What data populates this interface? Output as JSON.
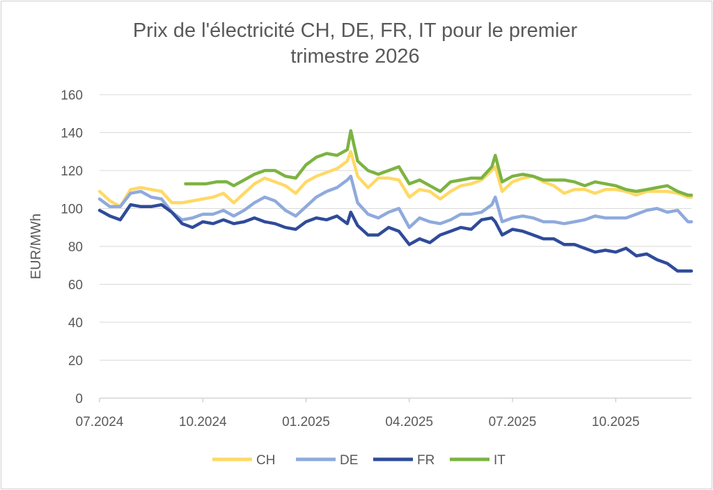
{
  "chart_data": {
    "type": "line",
    "title": "Prix de l'électricité CH, DE, FR, IT pour le premier\ntrimestre 2026",
    "xlabel": "",
    "ylabel": "EUR/MWh",
    "ylim": [
      0,
      160
    ],
    "yticks": [
      0,
      20,
      40,
      60,
      80,
      100,
      120,
      140,
      160
    ],
    "xlim": [
      0,
      17.2
    ],
    "x_unit": "months since 07.2024",
    "xticks": [
      {
        "pos": 0,
        "label": "07.2024"
      },
      {
        "pos": 3,
        "label": "10.2024"
      },
      {
        "pos": 6,
        "label": "01.2025"
      },
      {
        "pos": 9,
        "label": "04.2025"
      },
      {
        "pos": 12,
        "label": "07.2025"
      },
      {
        "pos": 15,
        "label": "10.2025"
      }
    ],
    "grid": true,
    "legend": "bottom",
    "series": [
      {
        "name": "CH",
        "color": "#FFD966",
        "x": [
          0,
          0.3,
          0.6,
          0.9,
          1.2,
          1.5,
          1.8,
          2.1,
          2.4,
          2.7,
          3.0,
          3.3,
          3.6,
          3.9,
          4.2,
          4.5,
          4.8,
          5.1,
          5.4,
          5.7,
          6.0,
          6.3,
          6.6,
          6.9,
          7.2,
          7.3,
          7.5,
          7.8,
          8.1,
          8.4,
          8.7,
          9.0,
          9.3,
          9.6,
          9.9,
          10.2,
          10.5,
          10.8,
          11.1,
          11.4,
          11.5,
          11.7,
          12.0,
          12.3,
          12.6,
          12.9,
          13.2,
          13.5,
          13.8,
          14.1,
          14.4,
          14.7,
          15.0,
          15.3,
          15.6,
          15.9,
          16.2,
          16.5,
          16.8,
          17.1,
          17.2
        ],
        "values": [
          109,
          104,
          101,
          110,
          111,
          110,
          109,
          103,
          103,
          104,
          105,
          106,
          108,
          103,
          108,
          113,
          116,
          114,
          112,
          108,
          114,
          117,
          119,
          121,
          125,
          130,
          117,
          111,
          116,
          116,
          115,
          106,
          110,
          109,
          105,
          109,
          112,
          113,
          115,
          120,
          122,
          109,
          114,
          116,
          117,
          114,
          112,
          108,
          110,
          110,
          108,
          110,
          110,
          109,
          107,
          109,
          109,
          109,
          108,
          106,
          106
        ]
      },
      {
        "name": "DE",
        "color": "#8FAADC",
        "x": [
          0,
          0.3,
          0.6,
          0.9,
          1.2,
          1.5,
          1.8,
          2.1,
          2.4,
          2.7,
          3.0,
          3.3,
          3.6,
          3.9,
          4.2,
          4.5,
          4.8,
          5.1,
          5.4,
          5.7,
          6.0,
          6.3,
          6.6,
          6.9,
          7.2,
          7.3,
          7.5,
          7.8,
          8.1,
          8.4,
          8.7,
          9.0,
          9.3,
          9.6,
          9.9,
          10.2,
          10.5,
          10.8,
          11.1,
          11.4,
          11.5,
          11.7,
          12.0,
          12.3,
          12.6,
          12.9,
          13.2,
          13.5,
          13.8,
          14.1,
          14.4,
          14.7,
          15.0,
          15.3,
          15.6,
          15.9,
          16.2,
          16.5,
          16.8,
          17.1,
          17.2
        ],
        "values": [
          105,
          101,
          101,
          108,
          109,
          106,
          105,
          98,
          94,
          95,
          97,
          97,
          99,
          96,
          99,
          103,
          106,
          104,
          99,
          96,
          101,
          106,
          109,
          111,
          115,
          117,
          103,
          97,
          95,
          98,
          100,
          90,
          95,
          93,
          92,
          94,
          97,
          97,
          98,
          102,
          106,
          93,
          95,
          96,
          95,
          93,
          93,
          92,
          93,
          94,
          96,
          95,
          95,
          95,
          97,
          99,
          100,
          98,
          99,
          93,
          93
        ]
      },
      {
        "name": "FR",
        "color": "#2F4B9A",
        "x": [
          0,
          0.3,
          0.6,
          0.9,
          1.2,
          1.5,
          1.8,
          2.1,
          2.4,
          2.7,
          3.0,
          3.3,
          3.6,
          3.9,
          4.2,
          4.5,
          4.8,
          5.1,
          5.4,
          5.7,
          6.0,
          6.3,
          6.6,
          6.9,
          7.2,
          7.3,
          7.5,
          7.8,
          8.1,
          8.4,
          8.7,
          9.0,
          9.3,
          9.6,
          9.9,
          10.2,
          10.5,
          10.8,
          11.1,
          11.4,
          11.5,
          11.7,
          12.0,
          12.3,
          12.6,
          12.9,
          13.2,
          13.5,
          13.8,
          14.1,
          14.4,
          14.7,
          15.0,
          15.3,
          15.6,
          15.9,
          16.2,
          16.5,
          16.8,
          17.1,
          17.2
        ],
        "values": [
          99,
          96,
          94,
          102,
          101,
          101,
          102,
          98,
          92,
          90,
          93,
          92,
          94,
          92,
          93,
          95,
          93,
          92,
          90,
          89,
          93,
          95,
          94,
          96,
          92,
          98,
          91,
          86,
          86,
          90,
          88,
          81,
          84,
          82,
          86,
          88,
          90,
          89,
          94,
          95,
          93,
          86,
          89,
          88,
          86,
          84,
          84,
          81,
          81,
          79,
          77,
          78,
          77,
          79,
          75,
          76,
          73,
          71,
          67,
          67,
          67
        ]
      },
      {
        "name": "IT",
        "color": "#7CB342",
        "x": [
          2.5,
          2.8,
          3.1,
          3.4,
          3.7,
          3.9,
          4.2,
          4.5,
          4.8,
          5.1,
          5.4,
          5.7,
          6.0,
          6.3,
          6.6,
          6.9,
          7.2,
          7.3,
          7.5,
          7.8,
          8.1,
          8.4,
          8.7,
          9.0,
          9.3,
          9.6,
          9.9,
          10.2,
          10.5,
          10.8,
          11.1,
          11.4,
          11.5,
          11.7,
          12.0,
          12.3,
          12.6,
          12.9,
          13.2,
          13.5,
          13.8,
          14.1,
          14.4,
          14.7,
          15.0,
          15.3,
          15.6,
          15.9,
          16.2,
          16.5,
          16.8,
          17.1,
          17.2
        ],
        "values": [
          113,
          113,
          113,
          114,
          114,
          112,
          115,
          118,
          120,
          120,
          117,
          116,
          123,
          127,
          129,
          128,
          131,
          141,
          125,
          120,
          118,
          120,
          122,
          113,
          115,
          112,
          109,
          114,
          115,
          116,
          116,
          122,
          128,
          114,
          117,
          118,
          117,
          115,
          115,
          115,
          114,
          112,
          114,
          113,
          112,
          110,
          109,
          110,
          111,
          112,
          109,
          107,
          107
        ]
      }
    ]
  }
}
